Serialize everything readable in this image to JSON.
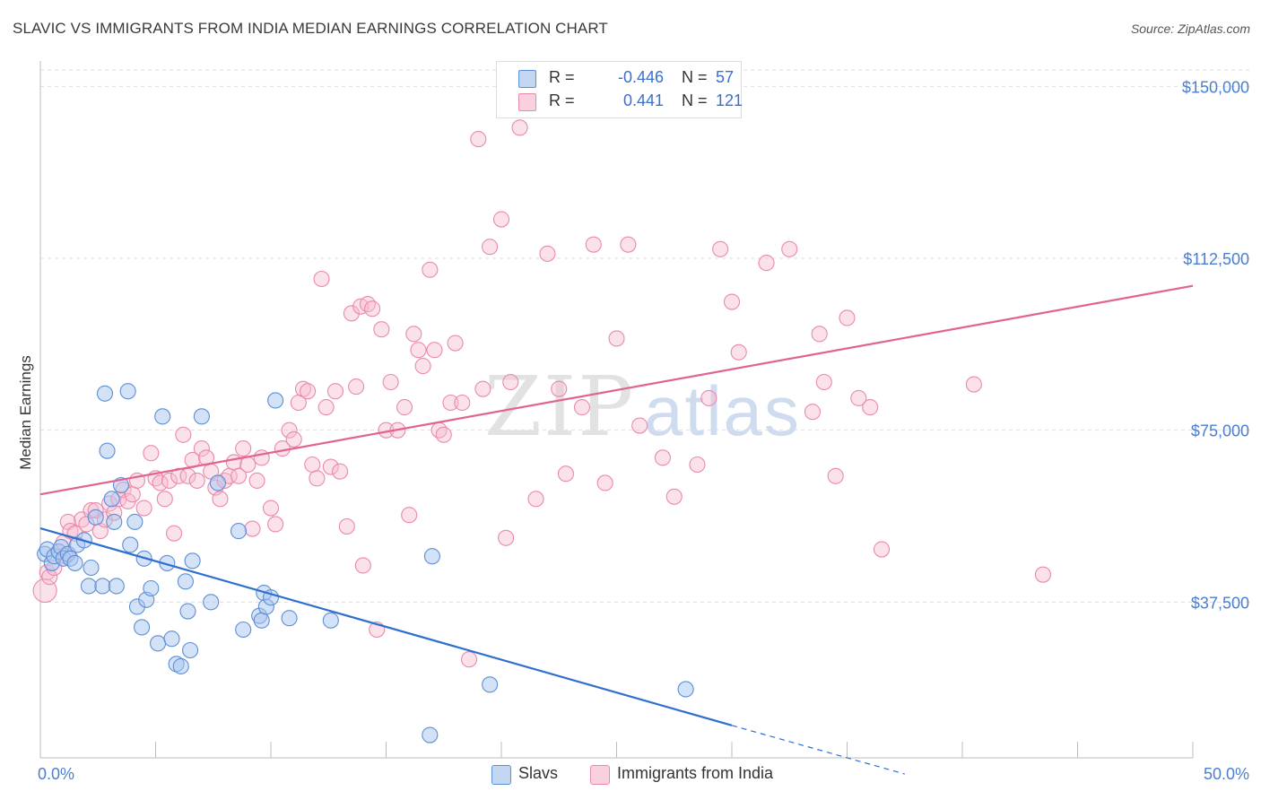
{
  "header": {
    "title": "SLAVIC VS IMMIGRANTS FROM INDIA MEDIAN EARNINGS CORRELATION CHART",
    "source": "Source: ZipAtlas.com"
  },
  "watermark": {
    "zip": "ZIP",
    "atlas": "atlas"
  },
  "legend": {
    "rows": [
      {
        "r_label": "R =",
        "r_value": "-0.446",
        "n_label": "N =",
        "n_value": "57"
      },
      {
        "r_label": "R =",
        "r_value": "0.441",
        "n_label": "N =",
        "n_value": "121"
      }
    ]
  },
  "bottom_legend": {
    "slavs": "Slavs",
    "india": "Immigrants from India"
  },
  "colors": {
    "slavs_fill": "#a9c6ef",
    "slavs_stroke": "#5b8fd6",
    "slavs_line": "#2f6fcf",
    "india_fill": "#f6bcd0",
    "india_stroke": "#e98aab",
    "india_line": "#e0648f",
    "grid": "#dddddd",
    "tick_label": "#4a7fd0"
  },
  "chart_data": {
    "type": "scatter",
    "title": "SLAVIC VS IMMIGRANTS FROM INDIA MEDIAN EARNINGS CORRELATION CHART",
    "xlabel": "",
    "ylabel": "Median Earnings",
    "xlim": [
      0,
      50
    ],
    "ylim": [
      0,
      155000
    ],
    "x_tick_labels": [
      "0.0%",
      "50.0%"
    ],
    "y_ticks": [
      37500,
      75000,
      112500,
      150000
    ],
    "y_tick_labels": [
      "$37,500",
      "$75,000",
      "$112,500",
      "$150,000"
    ],
    "grid": "horizontal dashed",
    "legend_position": "top-center",
    "series": [
      {
        "name": "Slavs",
        "points": [
          [
            0.2,
            48000
          ],
          [
            0.3,
            49000
          ],
          [
            0.5,
            46000
          ],
          [
            0.6,
            47500
          ],
          [
            0.8,
            48500
          ],
          [
            0.9,
            49500
          ],
          [
            1.0,
            47000
          ],
          [
            1.2,
            48000
          ],
          [
            1.3,
            47000
          ],
          [
            1.5,
            46000
          ],
          [
            1.6,
            50000
          ],
          [
            1.9,
            51000
          ],
          [
            2.1,
            41000
          ],
          [
            2.2,
            45000
          ],
          [
            2.4,
            56000
          ],
          [
            2.7,
            41000
          ],
          [
            2.8,
            83000
          ],
          [
            2.9,
            70500
          ],
          [
            3.1,
            60000
          ],
          [
            3.2,
            55000
          ],
          [
            3.3,
            41000
          ],
          [
            3.5,
            63000
          ],
          [
            3.8,
            83500
          ],
          [
            3.9,
            50000
          ],
          [
            4.1,
            55000
          ],
          [
            4.2,
            36500
          ],
          [
            4.4,
            32000
          ],
          [
            4.5,
            47000
          ],
          [
            4.6,
            38000
          ],
          [
            4.8,
            40500
          ],
          [
            5.1,
            28500
          ],
          [
            5.3,
            78000
          ],
          [
            5.5,
            46000
          ],
          [
            5.7,
            29500
          ],
          [
            5.9,
            24000
          ],
          [
            6.1,
            23500
          ],
          [
            6.3,
            42000
          ],
          [
            6.4,
            35500
          ],
          [
            6.5,
            27000
          ],
          [
            6.6,
            46500
          ],
          [
            7.0,
            78000
          ],
          [
            7.4,
            37500
          ],
          [
            7.7,
            63500
          ],
          [
            8.6,
            53000
          ],
          [
            8.8,
            31500
          ],
          [
            9.5,
            34500
          ],
          [
            9.6,
            33500
          ],
          [
            9.7,
            39500
          ],
          [
            9.8,
            36500
          ],
          [
            10.0,
            38500
          ],
          [
            10.2,
            81500
          ],
          [
            10.8,
            34000
          ],
          [
            12.6,
            33500
          ],
          [
            16.9,
            8500
          ],
          [
            19.5,
            19500
          ],
          [
            28.0,
            18500
          ],
          [
            17.0,
            47500
          ]
        ],
        "trend": {
          "x": [
            0,
            30
          ],
          "y": [
            53600,
            10600
          ],
          "dashed_to": [
            37.5,
            0
          ]
        }
      },
      {
        "name": "Immigrants from India",
        "points": [
          [
            0.2,
            40000
          ],
          [
            0.3,
            44000
          ],
          [
            0.4,
            43000
          ],
          [
            0.6,
            45000
          ],
          [
            1.0,
            50500
          ],
          [
            1.1,
            47500
          ],
          [
            1.2,
            55000
          ],
          [
            1.3,
            53000
          ],
          [
            1.5,
            52500
          ],
          [
            1.8,
            55500
          ],
          [
            2.0,
            54500
          ],
          [
            2.2,
            57500
          ],
          [
            2.4,
            57500
          ],
          [
            2.6,
            53000
          ],
          [
            2.8,
            55500
          ],
          [
            3.0,
            59000
          ],
          [
            3.2,
            57000
          ],
          [
            3.4,
            60000
          ],
          [
            3.6,
            62000
          ],
          [
            3.8,
            59500
          ],
          [
            4.0,
            61000
          ],
          [
            4.2,
            64000
          ],
          [
            4.5,
            58000
          ],
          [
            4.8,
            70000
          ],
          [
            5.0,
            64500
          ],
          [
            5.2,
            63500
          ],
          [
            5.4,
            60000
          ],
          [
            5.6,
            64000
          ],
          [
            5.8,
            52500
          ],
          [
            6.0,
            65000
          ],
          [
            6.2,
            74000
          ],
          [
            6.4,
            65000
          ],
          [
            6.6,
            68500
          ],
          [
            6.8,
            64000
          ],
          [
            7.0,
            71000
          ],
          [
            7.2,
            69000
          ],
          [
            7.4,
            66000
          ],
          [
            7.6,
            62500
          ],
          [
            7.8,
            60000
          ],
          [
            8.0,
            64000
          ],
          [
            8.2,
            65000
          ],
          [
            8.4,
            68000
          ],
          [
            8.6,
            65000
          ],
          [
            8.8,
            71000
          ],
          [
            9.0,
            67500
          ],
          [
            9.2,
            53500
          ],
          [
            9.4,
            64000
          ],
          [
            9.6,
            69000
          ],
          [
            10.0,
            58000
          ],
          [
            10.2,
            54500
          ],
          [
            10.5,
            71000
          ],
          [
            10.8,
            75000
          ],
          [
            11.0,
            73000
          ],
          [
            11.2,
            81000
          ],
          [
            11.4,
            84000
          ],
          [
            11.6,
            83500
          ],
          [
            11.8,
            67500
          ],
          [
            12.0,
            64500
          ],
          [
            12.2,
            108000
          ],
          [
            12.4,
            80000
          ],
          [
            12.6,
            67000
          ],
          [
            12.8,
            83500
          ],
          [
            13.0,
            66000
          ],
          [
            13.3,
            54000
          ],
          [
            13.5,
            100500
          ],
          [
            13.7,
            84500
          ],
          [
            13.9,
            102000
          ],
          [
            14.0,
            45500
          ],
          [
            14.2,
            102500
          ],
          [
            14.4,
            101500
          ],
          [
            14.6,
            31500
          ],
          [
            14.8,
            97000
          ],
          [
            15.0,
            75000
          ],
          [
            15.2,
            85500
          ],
          [
            15.5,
            75000
          ],
          [
            15.8,
            80000
          ],
          [
            16.0,
            56500
          ],
          [
            16.2,
            96000
          ],
          [
            16.4,
            92500
          ],
          [
            16.6,
            89000
          ],
          [
            16.9,
            110000
          ],
          [
            17.1,
            92500
          ],
          [
            17.3,
            75000
          ],
          [
            17.5,
            74000
          ],
          [
            17.8,
            81000
          ],
          [
            18.0,
            94000
          ],
          [
            18.3,
            81000
          ],
          [
            18.6,
            25000
          ],
          [
            19.0,
            138500
          ],
          [
            19.2,
            84000
          ],
          [
            19.5,
            115000
          ],
          [
            20.0,
            121000
          ],
          [
            20.2,
            51500
          ],
          [
            20.4,
            85500
          ],
          [
            20.8,
            141000
          ],
          [
            21.5,
            60000
          ],
          [
            22.0,
            113500
          ],
          [
            22.5,
            84000
          ],
          [
            22.8,
            65500
          ],
          [
            23.5,
            80000
          ],
          [
            24.0,
            115500
          ],
          [
            24.5,
            63500
          ],
          [
            25.0,
            95000
          ],
          [
            25.5,
            115500
          ],
          [
            26.0,
            76000
          ],
          [
            27.0,
            69000
          ],
          [
            27.5,
            60500
          ],
          [
            28.5,
            67500
          ],
          [
            29.0,
            82000
          ],
          [
            29.5,
            114500
          ],
          [
            30.0,
            103000
          ],
          [
            30.3,
            92000
          ],
          [
            31.5,
            111500
          ],
          [
            32.5,
            114500
          ],
          [
            33.5,
            79000
          ],
          [
            33.8,
            96000
          ],
          [
            34.0,
            85500
          ],
          [
            34.5,
            65000
          ],
          [
            35.0,
            99500
          ],
          [
            35.5,
            82000
          ],
          [
            36.0,
            80000
          ],
          [
            36.5,
            49000
          ],
          [
            40.5,
            85000
          ],
          [
            43.5,
            43500
          ]
        ],
        "trend": {
          "x": [
            0,
            50
          ],
          "y": [
            61000,
            106500
          ]
        }
      }
    ]
  }
}
